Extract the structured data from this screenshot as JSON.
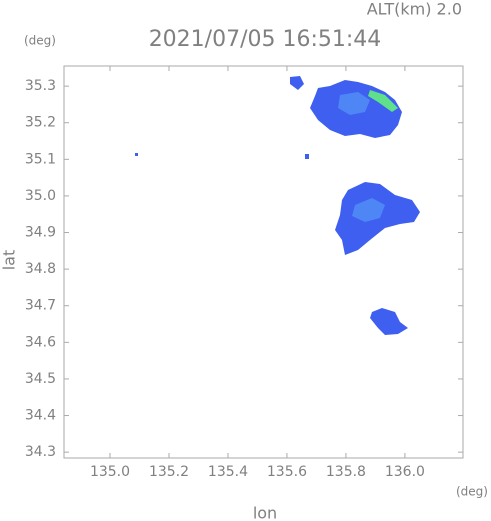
{
  "chart_data": {
    "type": "map",
    "title": "2021/07/05 16:51:44",
    "subtitle": "ALT(km) 2.0",
    "x_label": "lon",
    "y_label": "lat",
    "x_unit": "(deg)",
    "y_unit": "(deg)",
    "xlim": [
      134.844,
      136.197
    ],
    "ylim": [
      34.284,
      35.355
    ],
    "xticks": [
      {
        "value": 135.0,
        "label": "135.0"
      },
      135.2,
      135.4,
      135.6,
      135.8,
      {
        "value": 136.0,
        "label": "136.0"
      }
    ],
    "yticks": [
      34.3,
      34.4,
      34.5,
      34.6,
      34.7,
      34.8,
      34.9,
      {
        "value": 35.0,
        "label": "35.0"
      },
      35.1,
      35.2,
      35.3
    ]
  }
}
